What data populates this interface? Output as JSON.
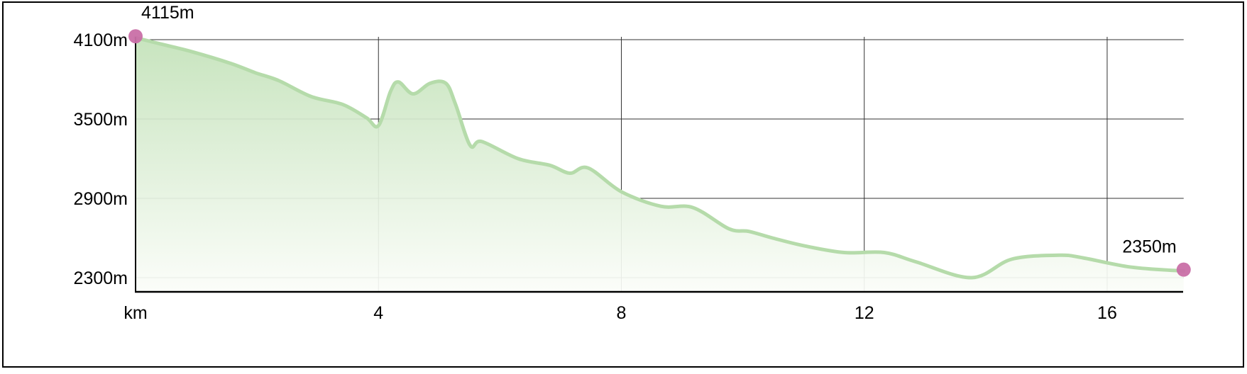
{
  "chart_data": {
    "type": "area",
    "title": "",
    "xlabel": "km",
    "ylabel": "",
    "xlim": [
      0,
      17.26
    ],
    "ylim": [
      2198,
      4100
    ],
    "grid": true,
    "x_ticks": [
      {
        "value": 0,
        "label": "km"
      },
      {
        "value": 4,
        "label": "4"
      },
      {
        "value": 8,
        "label": "8"
      },
      {
        "value": 12,
        "label": "12"
      },
      {
        "value": 16,
        "label": "16"
      }
    ],
    "y_ticks": [
      {
        "value": 4100,
        "label": "4100m"
      },
      {
        "value": 3500,
        "label": "3500m"
      },
      {
        "value": 2900,
        "label": "2900m"
      },
      {
        "value": 2300,
        "label": "2300m"
      }
    ],
    "x": [
      0,
      0.39,
      0.92,
      1.57,
      1.97,
      2.36,
      2.89,
      3.41,
      3.8,
      4.0,
      4.2,
      4.33,
      4.57,
      4.85,
      5.11,
      5.27,
      5.51,
      5.7,
      6.3,
      6.82,
      7.15,
      7.45,
      8.0,
      8.65,
      9.18,
      9.77,
      10.1,
      10.49,
      11.02,
      11.67,
      12.33,
      12.85,
      13.77,
      14.43,
      15.21,
      15.6,
      16.39,
      17.26
    ],
    "y": [
      4115,
      4070,
      4010,
      3920,
      3850,
      3790,
      3670,
      3610,
      3510,
      3450,
      3710,
      3780,
      3690,
      3770,
      3770,
      3610,
      3300,
      3330,
      3200,
      3150,
      3090,
      3130,
      2950,
      2840,
      2830,
      2670,
      2650,
      2600,
      2540,
      2490,
      2490,
      2420,
      2300,
      2440,
      2470,
      2450,
      2380,
      2350
    ],
    "annotations": [
      {
        "label": "4115m",
        "x": 0,
        "y": 4115
      },
      {
        "label": "2350m",
        "x": 17.26,
        "y": 2350
      }
    ],
    "colors": {
      "line": "#b5dbaa",
      "fill_top": "#c3e2b9",
      "fill_bottom": "#fbfdf9",
      "marker": "#c96fa6",
      "grid": "#333333"
    }
  }
}
